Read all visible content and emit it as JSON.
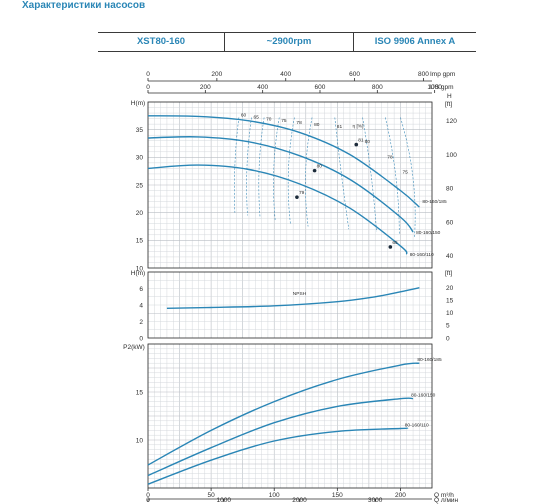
{
  "page_title": "Характеристики насосов",
  "info_bar": {
    "model": "XST80-160",
    "speed": "~2900rpm",
    "standard": "ISO 9906   Annex A"
  },
  "colors": {
    "accent": "#2a86b6",
    "grid": "#b9bec4",
    "frame": "#2b2b2b"
  },
  "chart_data": [
    {
      "type": "line",
      "title": "",
      "xlabel": "Q m³/h",
      "ylabel": "H(m)",
      "y2label": "H [ft]",
      "xlim": [
        0,
        225
      ],
      "ylim": [
        10,
        40
      ],
      "y2lim": [
        30,
        130
      ],
      "top_axes": [
        {
          "unit": "Imp gpm",
          "ticks": [
            "0",
            "200",
            "400",
            "600",
            "800"
          ]
        },
        {
          "unit": "US gpm",
          "ticks": [
            "0",
            "200",
            "400",
            "600",
            "800",
            "1000"
          ]
        }
      ],
      "yticks": [
        "10",
        "15",
        "20",
        "25",
        "30",
        "35"
      ],
      "y2ticks": [
        "40",
        "60",
        "80",
        "100",
        "120"
      ],
      "eff_symbol": "η [%]",
      "series": [
        {
          "name": "80-160/185",
          "x": [
            0,
            40,
            80,
            120,
            160,
            200,
            215
          ],
          "y": [
            37.5,
            37.4,
            36.6,
            34.5,
            30.5,
            24.0,
            21.0
          ]
        },
        {
          "name": "80-160/150",
          "x": [
            0,
            40,
            80,
            120,
            160,
            200,
            210
          ],
          "y": [
            33.5,
            33.7,
            32.8,
            30.3,
            26.0,
            19.2,
            16.5
          ]
        },
        {
          "name": "80-160/110",
          "x": [
            0,
            40,
            80,
            120,
            160,
            200,
            205
          ],
          "y": [
            28.0,
            28.6,
            27.8,
            25.2,
            20.8,
            14.0,
            12.5
          ]
        }
      ],
      "efficiency_lines": [
        "60",
        "65",
        "70",
        "75",
        "78",
        "80",
        "81",
        "80",
        "78",
        "75"
      ],
      "operating_points": [
        {
          "x": 165,
          "y": 32.3,
          "label": "81"
        },
        {
          "x": 132,
          "y": 27.6,
          "label": "80"
        },
        {
          "x": 118,
          "y": 22.8,
          "label": "79"
        },
        {
          "x": 192,
          "y": 13.8,
          "label": "65"
        }
      ]
    },
    {
      "type": "line",
      "title": "",
      "xlabel": "Q m³/h",
      "ylabel": "H(m)",
      "y2label": "[ft]",
      "xlim": [
        0,
        225
      ],
      "ylim": [
        0,
        8
      ],
      "y2lim": [
        0,
        26
      ],
      "yticks": [
        "0",
        "2",
        "4",
        "6"
      ],
      "y2ticks": [
        "0",
        "5",
        "10",
        "15",
        "20"
      ],
      "series": [
        {
          "name": "NPSH",
          "x": [
            15,
            50,
            100,
            150,
            180,
            200,
            215
          ],
          "y": [
            3.6,
            3.7,
            3.9,
            4.4,
            5.0,
            5.6,
            6.1
          ]
        }
      ]
    },
    {
      "type": "line",
      "title": "",
      "xlabel": "Q m³/h",
      "x2label": "Q л/мин",
      "ylabel": "P2(kW)",
      "xlim": [
        0,
        225
      ],
      "ylim": [
        5,
        20
      ],
      "yticks": [
        "10",
        "15"
      ],
      "xticks": [
        "0",
        "50",
        "100",
        "150",
        "200"
      ],
      "x2ticks": [
        "0",
        "1000",
        "2000",
        "3000"
      ],
      "series": [
        {
          "name": "80-160/185",
          "x": [
            0,
            50,
            100,
            150,
            200,
            215
          ],
          "y": [
            7.4,
            11.0,
            14.0,
            16.3,
            17.8,
            18.0
          ]
        },
        {
          "name": "80-160/150",
          "x": [
            0,
            50,
            100,
            150,
            200,
            210
          ],
          "y": [
            6.3,
            9.2,
            11.8,
            13.5,
            14.3,
            14.3
          ]
        },
        {
          "name": "80-160/110",
          "x": [
            0,
            50,
            100,
            150,
            200,
            205
          ],
          "y": [
            5.4,
            7.9,
            9.9,
            10.9,
            11.2,
            11.2
          ]
        }
      ]
    }
  ]
}
